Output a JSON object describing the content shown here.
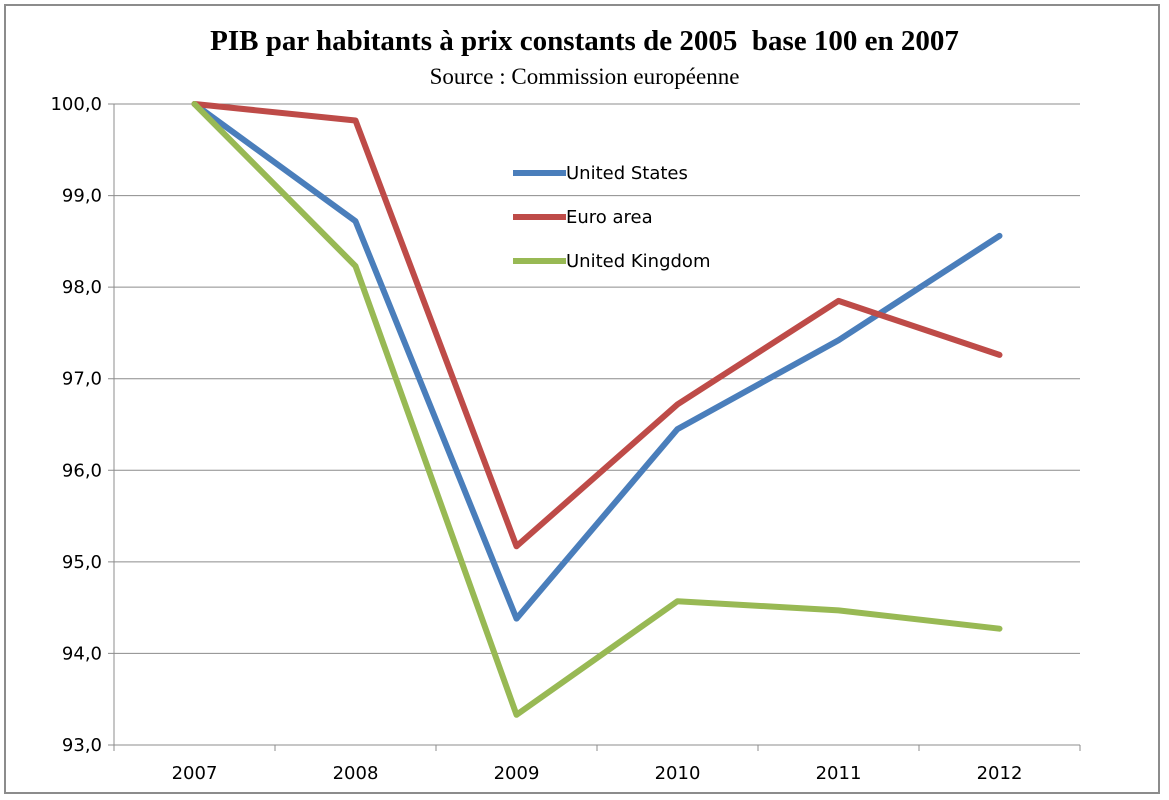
{
  "chart_data": {
    "type": "line",
    "title": "PIB par habitants à prix constants de 2005  base 100 en 2007",
    "subtitle": "Source : Commission européenne",
    "xlabel": "",
    "ylabel": "",
    "categories": [
      "2007",
      "2008",
      "2009",
      "2010",
      "2011",
      "2012"
    ],
    "ylim": [
      93,
      100
    ],
    "yticks": [
      "100,0",
      "99,0",
      "98,0",
      "97,0",
      "96,0",
      "95,0",
      "94,0",
      "93,0"
    ],
    "grid": true,
    "legend_position": "top-center",
    "series": [
      {
        "name": "United States",
        "color": "#4a7ebb",
        "values": [
          100.0,
          98.72,
          94.38,
          96.45,
          97.42,
          98.56
        ]
      },
      {
        "name": "Euro area",
        "color": "#be4b48",
        "values": [
          100.0,
          99.82,
          95.17,
          96.72,
          97.85,
          97.26
        ]
      },
      {
        "name": "United Kingdom",
        "color": "#98b954",
        "values": [
          100.0,
          98.23,
          93.33,
          94.57,
          94.47,
          94.27
        ]
      }
    ]
  }
}
